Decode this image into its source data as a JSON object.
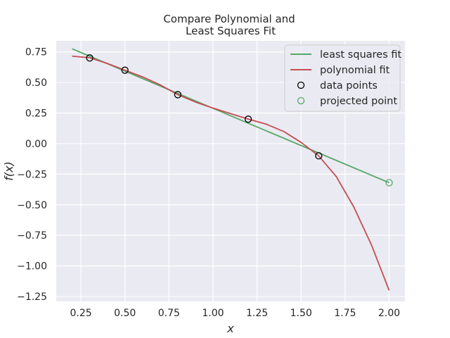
{
  "chart_data": {
    "type": "line",
    "title_line1": "Compare Polynomial and",
    "title_line2": "Least Squares Fit",
    "xlabel": "x",
    "ylabel": "f(x)",
    "xlim": [
      0.11,
      2.09
    ],
    "ylim": [
      -1.29,
      0.84
    ],
    "xticks": [
      0.25,
      0.5,
      0.75,
      1.0,
      1.25,
      1.5,
      1.75,
      2.0
    ],
    "xtick_labels": [
      "0.25",
      "0.50",
      "0.75",
      "1.00",
      "1.25",
      "1.50",
      "1.75",
      "2.00"
    ],
    "yticks": [
      0.75,
      0.5,
      0.25,
      0.0,
      -0.25,
      -0.5,
      -0.75,
      -1.0,
      -1.25
    ],
    "ytick_labels": [
      "0.75",
      "0.50",
      "0.25",
      "0.00",
      "−0.25",
      "−0.50",
      "−0.75",
      "−1.00",
      "−1.25"
    ],
    "grid": true,
    "legend_position": "top-right",
    "series": [
      {
        "name": "least squares fit",
        "kind": "line",
        "color": "#55a868",
        "x": [
          0.2,
          2.0
        ],
        "y": [
          0.775,
          -0.32
        ]
      },
      {
        "name": "polynomial fit",
        "kind": "line",
        "color": "#c44e52",
        "x": [
          0.2,
          0.3,
          0.4,
          0.5,
          0.6,
          0.7,
          0.8,
          0.9,
          1.0,
          1.1,
          1.2,
          1.3,
          1.4,
          1.5,
          1.6,
          1.7,
          1.8,
          1.9,
          2.0
        ],
        "y": [
          0.715,
          0.702,
          0.655,
          0.6,
          0.545,
          0.48,
          0.4,
          0.34,
          0.29,
          0.245,
          0.2,
          0.16,
          0.1,
          0.01,
          -0.1,
          -0.27,
          -0.52,
          -0.83,
          -1.2
        ]
      },
      {
        "name": "data points",
        "kind": "scatter",
        "color": "#000000",
        "x": [
          0.3,
          0.5,
          0.8,
          1.2,
          1.6
        ],
        "y": [
          0.7,
          0.6,
          0.4,
          0.2,
          -0.1
        ]
      },
      {
        "name": "projected point",
        "kind": "scatter",
        "color": "#55a868",
        "x": [
          2.0
        ],
        "y": [
          -0.32
        ]
      }
    ]
  }
}
